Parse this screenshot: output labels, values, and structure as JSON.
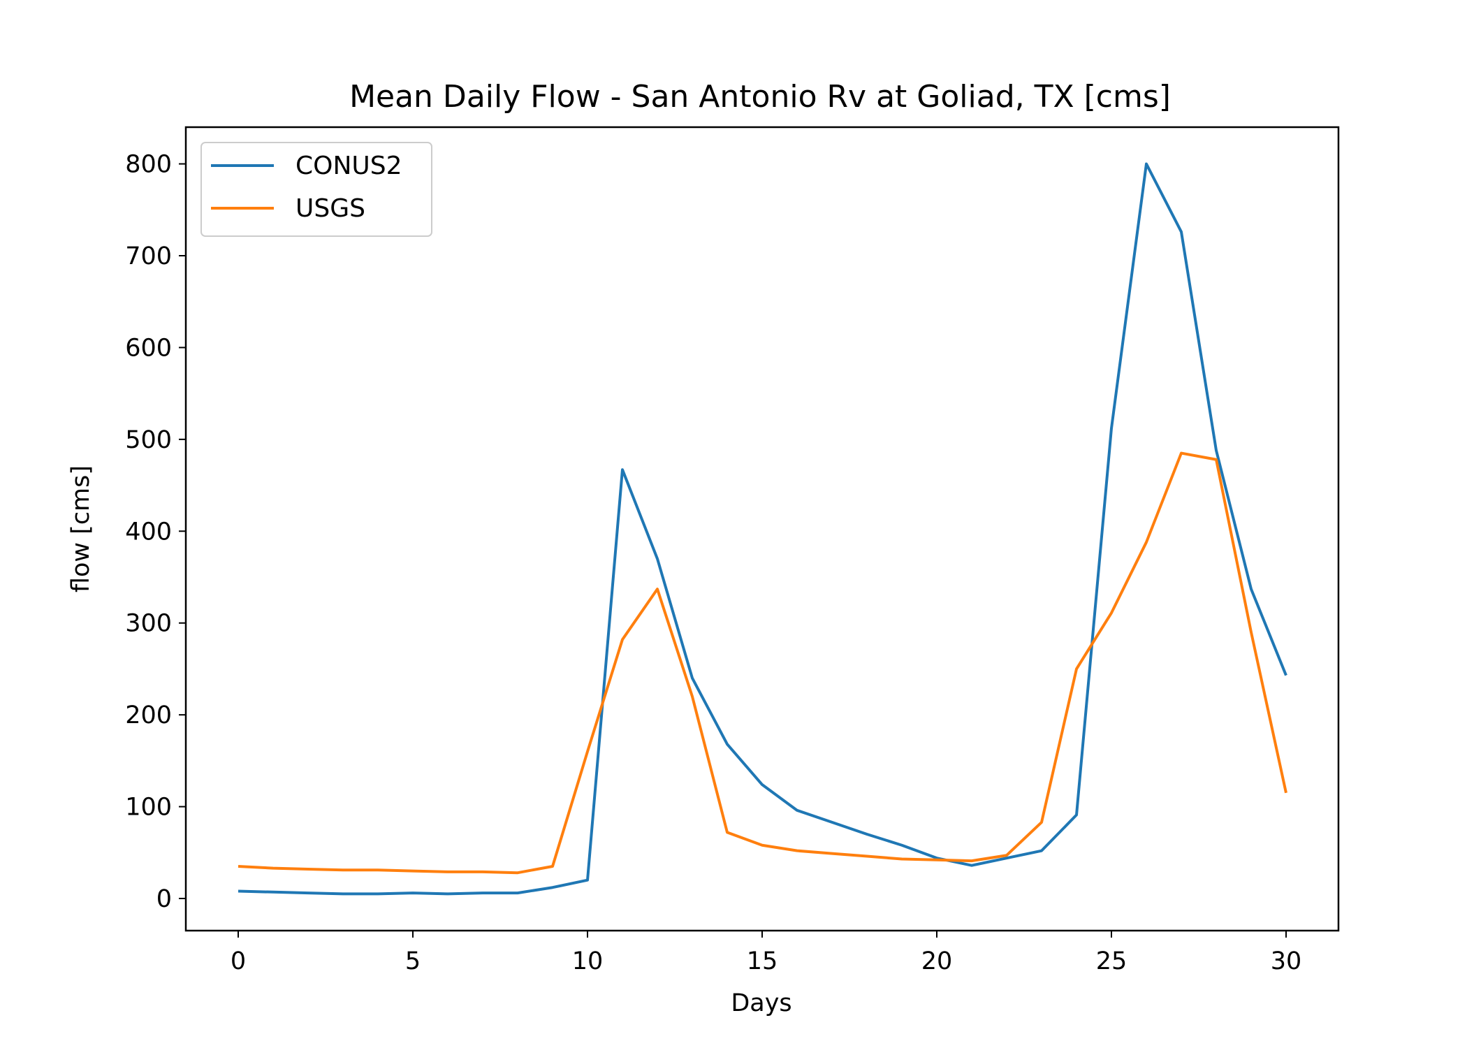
{
  "chart_data": {
    "type": "line",
    "title": "Mean Daily Flow - San Antonio Rv at Goliad, TX [cms]",
    "xlabel": "Days",
    "ylabel": "flow [cms]",
    "xlim": [
      -1.5,
      31.5
    ],
    "ylim": [
      -35,
      840
    ],
    "xticks": [
      0,
      5,
      10,
      15,
      20,
      25,
      30
    ],
    "yticks": [
      0,
      100,
      200,
      300,
      400,
      500,
      600,
      700,
      800
    ],
    "grid": false,
    "legend_position": "upper left",
    "x": [
      0,
      1,
      2,
      3,
      4,
      5,
      6,
      7,
      8,
      9,
      10,
      11,
      12,
      13,
      14,
      15,
      16,
      17,
      18,
      19,
      20,
      21,
      22,
      23,
      24,
      25,
      26,
      27,
      28,
      29,
      30
    ],
    "series": [
      {
        "name": "CONUS2",
        "color": "#1f77b4",
        "values": [
          8,
          7,
          6,
          5,
          5,
          6,
          5,
          6,
          6,
          12,
          20,
          467,
          370,
          240,
          168,
          124,
          96,
          83,
          70,
          58,
          44,
          36,
          44,
          52,
          91,
          512,
          800,
          726,
          488,
          337,
          243
        ]
      },
      {
        "name": "USGS",
        "color": "#ff7f0e",
        "values": [
          35,
          33,
          32,
          31,
          31,
          30,
          29,
          29,
          28,
          35,
          160,
          282,
          337,
          220,
          72,
          58,
          52,
          49,
          46,
          43,
          42,
          41,
          47,
          83,
          250,
          311,
          388,
          485,
          478,
          290,
          115
        ]
      }
    ]
  }
}
